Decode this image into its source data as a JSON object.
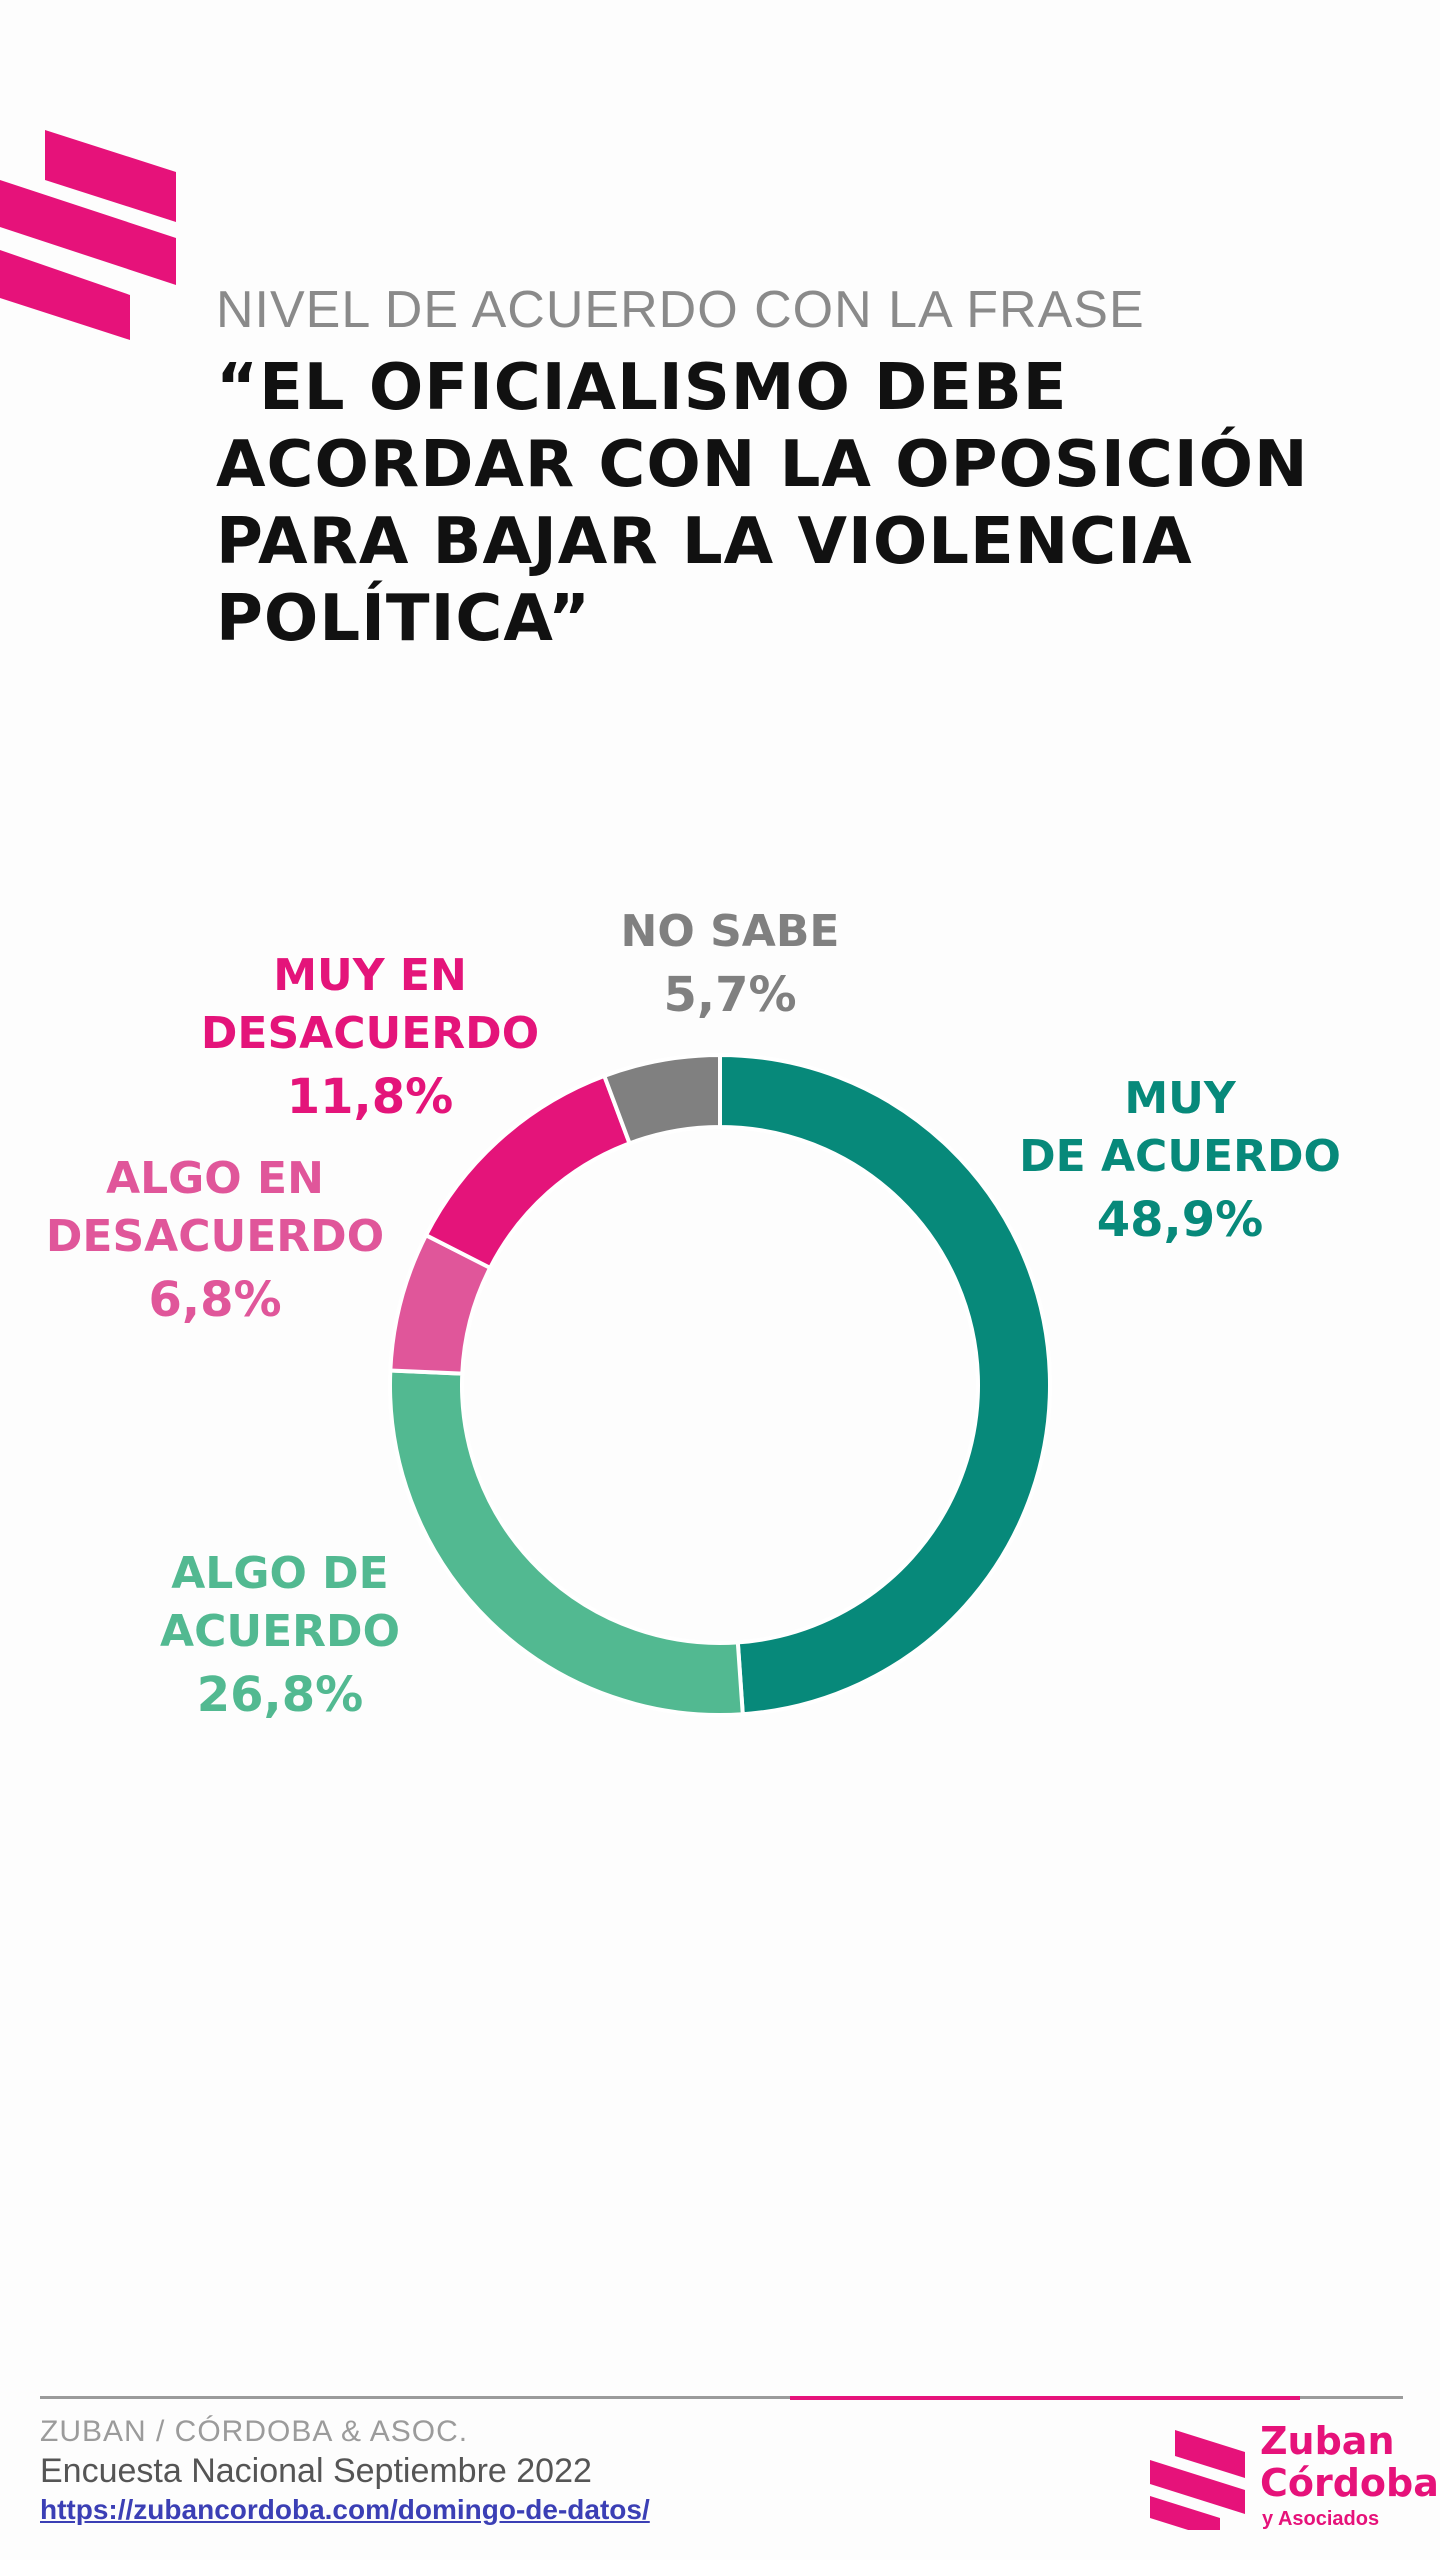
{
  "header": {
    "subtitle": "NIVEL DE ACUERDO CON LA FRASE",
    "title": "“EL OFICIALISMO DEBE ACORDAR CON LA OPOSICIÓN PARA BAJAR LA VIOLENCIA POLÍTICA”"
  },
  "chart_data": {
    "type": "pie",
    "donut": true,
    "title": "“EL OFICIALISMO DEBE ACORDAR CON LA OPOSICIÓN PARA BAJAR LA VIOLENCIA POLÍTICA”",
    "categories": [
      "MUY DE ACUERDO",
      "ALGO DE ACUERDO",
      "ALGO EN DESACUERDO",
      "MUY EN DESACUERDO",
      "NO SABE"
    ],
    "values": [
      48.9,
      26.8,
      6.8,
      11.8,
      5.7
    ],
    "colors": [
      "#07897a",
      "#52b991",
      "#e0569a",
      "#e4147a",
      "#808080"
    ],
    "labels": [
      {
        "name": "MUY\nDE ACUERDO",
        "value": "48,9%"
      },
      {
        "name": "ALGO DE\nACUERDO",
        "value": "26,8%"
      },
      {
        "name": "ALGO EN\nDESACUERDO",
        "value": "6,8%"
      },
      {
        "name": "MUY EN\nDESACUERDO",
        "value": "11,8%"
      },
      {
        "name": "NO SABE",
        "value": "5,7%"
      }
    ]
  },
  "footer": {
    "org": "ZUBAN / CÓRDOBA & ASOC.",
    "survey": "Encuesta Nacional Septiembre 2022",
    "link": "https://zubancordoba.com/domingo-de-datos/",
    "brand_line1": "Zuban",
    "brand_line2": "Córdoba",
    "brand_sub": "y Asociados",
    "accent": "#e6127a"
  }
}
